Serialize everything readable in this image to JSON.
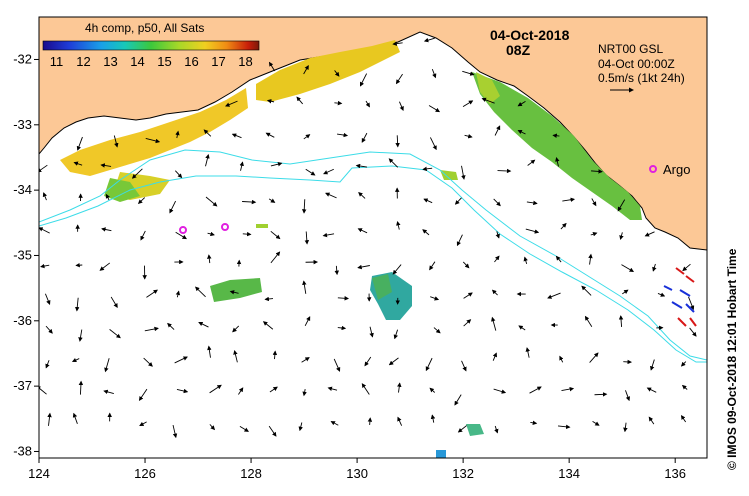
{
  "header": {
    "composite_label": "4h comp, p50, All Sats",
    "date": "04-Oct-2018",
    "hour": "08Z"
  },
  "colorbar": {
    "ticks": [
      "11",
      "12",
      "13",
      "14",
      "15",
      "16",
      "17",
      "18"
    ],
    "min": 10.5,
    "max": 18.5,
    "colors": [
      "#1a0a8c",
      "#1f3cd8",
      "#19a0e8",
      "#18c8b8",
      "#3cc83c",
      "#a8d828",
      "#f0d020",
      "#f08c14",
      "#c81e0a",
      "#7a1a0a"
    ]
  },
  "current_legend": {
    "source": "NRT00 GSL",
    "time": "04-Oct 00:00Z",
    "scale": "0.5m/s (1kt 24h)"
  },
  "argo": {
    "label": "Argo"
  },
  "axes": {
    "x_ticks": [
      "124",
      "126",
      "128",
      "130",
      "132",
      "134",
      "136"
    ],
    "y_ticks": [
      "-32",
      "-33",
      "-34",
      "-35",
      "-36",
      "-37",
      "-38"
    ],
    "xlim": [
      124,
      136.6
    ],
    "ylim": [
      -38.1,
      -31.35
    ]
  },
  "footer": {
    "credit": "© IMOS 09-Oct-2018 12:01 Hobart Time"
  },
  "colors": {
    "land": "#fcc896",
    "contour": "#3cdce8",
    "argo_marker": "#e020e0"
  }
}
